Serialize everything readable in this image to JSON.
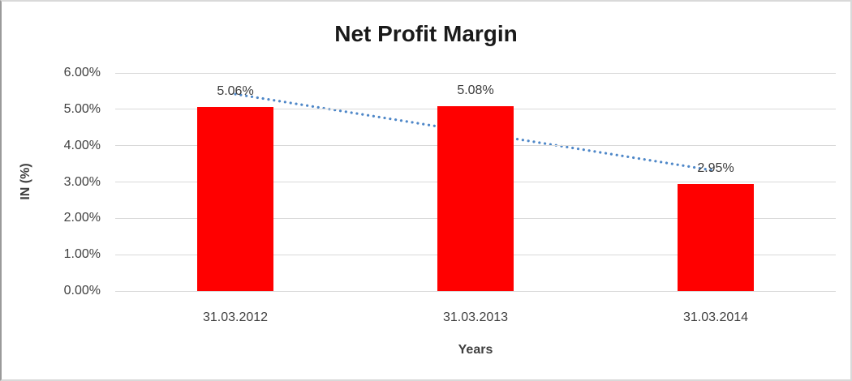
{
  "chart_data": {
    "type": "bar",
    "title": "Net Profit Margin",
    "xlabel": "Years",
    "ylabel": "IN (%)",
    "categories": [
      "31.03.2012",
      "31.03.2013",
      "31.03.2014"
    ],
    "values": [
      5.06,
      5.08,
      2.95
    ],
    "data_labels": [
      "5.06%",
      "5.08%",
      "2.95%"
    ],
    "ylim": [
      0,
      6
    ],
    "ytick_step": 1,
    "ytick_labels": [
      "0.00%",
      "1.00%",
      "2.00%",
      "3.00%",
      "4.00%",
      "5.00%",
      "6.00%"
    ],
    "grid": true,
    "legend": "none",
    "colors": {
      "bar": "#FF0000",
      "trendline": "#4E87C8",
      "gridline": "#d9d9d9",
      "title_text": "#1a1a1a",
      "axis_text": "#3f3f3f"
    },
    "trendline": {
      "type": "linear",
      "style": "dotted"
    }
  }
}
